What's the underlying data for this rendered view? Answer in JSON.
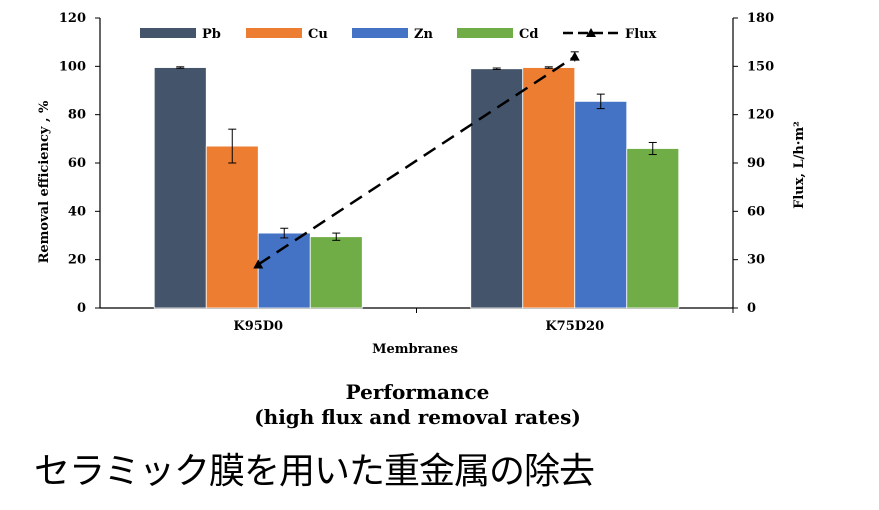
{
  "chart_data": {
    "type": "bar",
    "categories": [
      "K95D0",
      "K75D20"
    ],
    "series": [
      {
        "name": "Pb",
        "color": "#44546A",
        "values": [
          99.5,
          99.0
        ],
        "errors": [
          0.3,
          0.3
        ]
      },
      {
        "name": "Cu",
        "color": "#ED7D31",
        "values": [
          67.0,
          99.5
        ],
        "errors": [
          7.0,
          0.3
        ]
      },
      {
        "name": "Zn",
        "color": "#4472C4",
        "values": [
          31.0,
          85.5
        ],
        "errors": [
          2.0,
          3.0
        ]
      },
      {
        "name": "Cd",
        "color": "#70AD47",
        "values": [
          29.5,
          66.0
        ],
        "errors": [
          1.5,
          2.5
        ]
      }
    ],
    "line_series": {
      "name": "Flux",
      "axis": "right",
      "values": [
        27,
        156
      ],
      "errors": [
        0,
        3
      ]
    },
    "xlabel": "Membranes",
    "ylabel": "Removal efficiency , %",
    "y2label": "Flux, L/h·m²",
    "ylim": [
      0,
      120
    ],
    "y2lim": [
      0,
      180
    ],
    "yticks": [
      0,
      20,
      40,
      60,
      80,
      100,
      120
    ],
    "y2ticks": [
      0,
      30,
      60,
      90,
      120,
      150,
      180
    ],
    "legend_position": "top",
    "grid": false
  },
  "performance": {
    "title": "Performance",
    "subtitle": "(high flux and removal rates)"
  },
  "caption": "セラミック膜を用いた重金属の除去"
}
